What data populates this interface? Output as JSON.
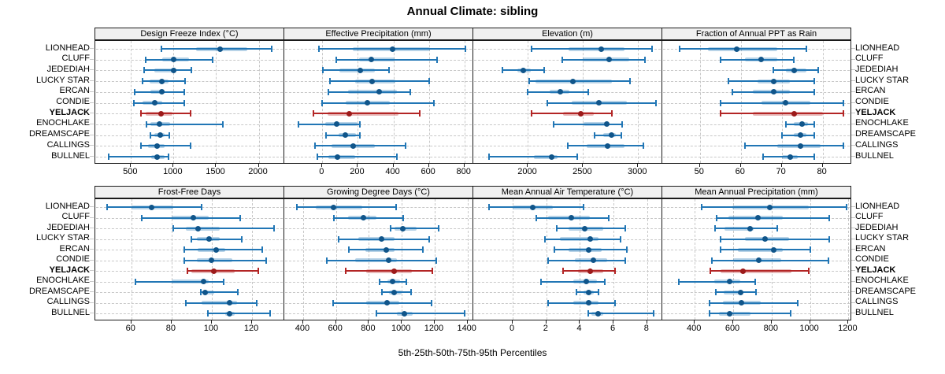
{
  "title": "Annual Climate: sibling",
  "xlabel": "5th-25th-50th-75th-95th Percentiles",
  "percentile_labels": [
    "5th",
    "25th",
    "50th",
    "75th",
    "95th"
  ],
  "colors": {
    "normal_line": "#2176b5",
    "normal_band": "rgba(33,118,181,0.32)",
    "normal_dot": "#10558a",
    "highlight_line": "#b32525",
    "highlight_band": "rgba(179,37,37,0.32)",
    "highlight_dot": "#9c1a1a",
    "strip_bg": "#f0f0f0",
    "grid": "#c8c8c8"
  },
  "chart_data": {
    "type": "scatter",
    "subtype": "percentile-dot-whisker-trellis",
    "title": "Annual Climate: sibling",
    "xlabel": "5th-25th-50th-75th-95th Percentiles",
    "categories": [
      "LIONHEAD",
      "CLUFF",
      "JEDEDIAH",
      "LUCKY STAR",
      "ERCAN",
      "CONDIE",
      "YELJACK",
      "ENOCHLAKE",
      "DREAMSCAPE",
      "CALLINGS",
      "BULLNEL"
    ],
    "highlight_category": "YELJACK",
    "legend": "none",
    "grid": "dashed",
    "panels": [
      {
        "title": "Design Freeze Index (°C)",
        "grid_row": 0,
        "grid_col": 0,
        "xticks": [
          500,
          1000,
          1500,
          2000
        ],
        "xlim": [
          90,
          2300
        ],
        "values": [
          [
            860,
            1265,
            1545,
            1865,
            2150
          ],
          [
            670,
            865,
            1005,
            1180,
            1455
          ],
          [
            655,
            770,
            1000,
            1030,
            1205
          ],
          [
            635,
            715,
            865,
            940,
            1135
          ],
          [
            545,
            730,
            860,
            895,
            1130
          ],
          [
            530,
            640,
            775,
            865,
            1130
          ],
          [
            620,
            670,
            850,
            985,
            1200
          ],
          [
            685,
            730,
            835,
            955,
            1580
          ],
          [
            730,
            770,
            840,
            895,
            950
          ],
          [
            615,
            700,
            805,
            895,
            1195
          ],
          [
            240,
            740,
            805,
            890,
            940
          ]
        ]
      },
      {
        "title": "Effective Precipitation (mm)",
        "grid_row": 0,
        "grid_col": 1,
        "xticks": [
          0,
          200,
          400,
          600,
          800
        ],
        "xlim": [
          -210,
          850
        ],
        "values": [
          [
            -20,
            170,
            395,
            605,
            805
          ],
          [
            80,
            205,
            275,
            405,
            645
          ],
          [
            5,
            95,
            215,
            295,
            375
          ],
          [
            45,
            185,
            280,
            410,
            600
          ],
          [
            35,
            145,
            320,
            420,
            495
          ],
          [
            0,
            130,
            255,
            380,
            630
          ],
          [
            -50,
            30,
            150,
            430,
            550
          ],
          [
            -135,
            15,
            80,
            198,
            210
          ],
          [
            20,
            90,
            130,
            190,
            210
          ],
          [
            -40,
            50,
            175,
            295,
            470
          ],
          [
            -30,
            35,
            85,
            185,
            420
          ]
        ]
      },
      {
        "title": "Elevation (m)",
        "grid_row": 0,
        "grid_col": 2,
        "xticks": [
          2000,
          2500,
          3000
        ],
        "xlim": [
          1510,
          3220
        ],
        "values": [
          [
            2030,
            2365,
            2665,
            2880,
            3125
          ],
          [
            2310,
            2500,
            2735,
            2920,
            3065
          ],
          [
            1770,
            1900,
            1960,
            2025,
            2150
          ],
          [
            2010,
            2070,
            2405,
            2765,
            2930
          ],
          [
            1995,
            2195,
            2295,
            2375,
            2550
          ],
          [
            2175,
            2400,
            2645,
            2895,
            3160
          ],
          [
            2035,
            2315,
            2480,
            2600,
            2760
          ],
          [
            2230,
            2505,
            2715,
            2725,
            2855
          ],
          [
            2605,
            2685,
            2755,
            2800,
            2850
          ],
          [
            2360,
            2535,
            2725,
            2880,
            3050
          ],
          [
            1645,
            2055,
            2215,
            2270,
            2445
          ]
        ]
      },
      {
        "title": "Fraction of Annual PPT as Rain",
        "grid_row": 0,
        "grid_col": 3,
        "xticks": [
          50,
          60,
          70,
          80
        ],
        "xlim": [
          41,
          87
        ],
        "values": [
          [
            45,
            52,
            59,
            69,
            76
          ],
          [
            55,
            61,
            65,
            69,
            73
          ],
          [
            68,
            71,
            73,
            76,
            79
          ],
          [
            57,
            64,
            68,
            72,
            78
          ],
          [
            58,
            63,
            68,
            72,
            78
          ],
          [
            55,
            65,
            71,
            77,
            85
          ],
          [
            55,
            63,
            73,
            80,
            85
          ],
          [
            71,
            73,
            75,
            76.5,
            78
          ],
          [
            70,
            73,
            74.5,
            76,
            78
          ],
          [
            61,
            69,
            74.5,
            79.5,
            85
          ],
          [
            65.5,
            70,
            72,
            74,
            78
          ]
        ]
      },
      {
        "title": "Frost-Free Days",
        "grid_row": 1,
        "grid_col": 0,
        "xticks": [
          60,
          80,
          100,
          120
        ],
        "xlim": [
          42.5,
          136
        ],
        "values": [
          [
            48,
            60,
            70,
            81,
            95
          ],
          [
            65,
            80,
            91,
            98.5,
            114
          ],
          [
            81,
            87,
            93,
            104,
            131
          ],
          [
            90,
            92.5,
            98.5,
            104,
            115
          ],
          [
            86.5,
            93,
            102,
            106.5,
            125
          ],
          [
            86.5,
            92.5,
            100,
            110,
            127
          ],
          [
            88,
            90,
            101,
            111.5,
            123
          ],
          [
            62,
            80,
            96,
            98.5,
            106
          ],
          [
            94.5,
            95.5,
            96.5,
            101,
            113
          ],
          [
            87,
            95,
            109,
            112.5,
            122.5
          ],
          [
            98,
            106.5,
            109,
            111.5,
            129
          ]
        ]
      },
      {
        "title": "Growing Degree Days (°C)",
        "grid_row": 1,
        "grid_col": 1,
        "xticks": [
          400,
          600,
          800,
          1000,
          1200,
          1400
        ],
        "xlim": [
          290,
          1435
        ],
        "values": [
          [
            360,
            475,
            585,
            760,
            965
          ],
          [
            585,
            675,
            765,
            845,
            1010
          ],
          [
            930,
            955,
            1005,
            1090,
            1225
          ],
          [
            615,
            735,
            875,
            955,
            1165
          ],
          [
            680,
            780,
            905,
            955,
            1130
          ],
          [
            545,
            715,
            920,
            970,
            1210
          ],
          [
            660,
            785,
            955,
            1060,
            1185
          ],
          [
            865,
            915,
            945,
            990,
            1030
          ],
          [
            880,
            920,
            955,
            1000,
            1055
          ],
          [
            580,
            785,
            910,
            985,
            1180
          ],
          [
            845,
            970,
            1015,
            1065,
            1380
          ]
        ]
      },
      {
        "title": "Mean Annual Air Temperature (°C)",
        "grid_row": 1,
        "grid_col": 2,
        "xticks": [
          0,
          2,
          4,
          6,
          8
        ],
        "xlim": [
          -2.3,
          8.9
        ],
        "values": [
          [
            -1.4,
            0,
            1.2,
            2.4,
            4.2
          ],
          [
            1.4,
            2.1,
            3.5,
            4.6,
            5.7
          ],
          [
            2.6,
            3.3,
            4.3,
            5.4,
            6.7
          ],
          [
            1.9,
            2.8,
            4.6,
            5.1,
            6.4
          ],
          [
            2.5,
            3.3,
            4.5,
            5.3,
            6.8
          ],
          [
            2.1,
            3.7,
            4.8,
            5.6,
            6.7
          ],
          [
            3.0,
            3.9,
            4.6,
            5.4,
            6.1
          ],
          [
            1.7,
            3.6,
            4.4,
            5.0,
            5.5
          ],
          [
            3.8,
            4.2,
            4.5,
            4.8,
            5.1
          ],
          [
            2.1,
            3.6,
            4.5,
            5.1,
            6.1
          ],
          [
            4.5,
            4.7,
            5.1,
            5.4,
            8.4
          ]
        ]
      },
      {
        "title": "Mean Annual Precipitation (mm)",
        "grid_row": 1,
        "grid_col": 3,
        "xticks": [
          400,
          600,
          800,
          1000,
          1200
        ],
        "xlim": [
          235,
          1215
        ],
        "values": [
          [
            435,
            595,
            790,
            995,
            1190
          ],
          [
            515,
            575,
            730,
            860,
            1100
          ],
          [
            505,
            555,
            690,
            705,
            830
          ],
          [
            535,
            660,
            765,
            890,
            1100
          ],
          [
            535,
            625,
            810,
            860,
            1000
          ],
          [
            490,
            600,
            735,
            850,
            1095
          ],
          [
            480,
            535,
            650,
            905,
            995
          ],
          [
            315,
            500,
            580,
            635,
            715
          ],
          [
            510,
            550,
            640,
            645,
            720
          ],
          [
            475,
            545,
            645,
            745,
            935
          ],
          [
            475,
            525,
            580,
            690,
            900
          ]
        ]
      }
    ]
  }
}
